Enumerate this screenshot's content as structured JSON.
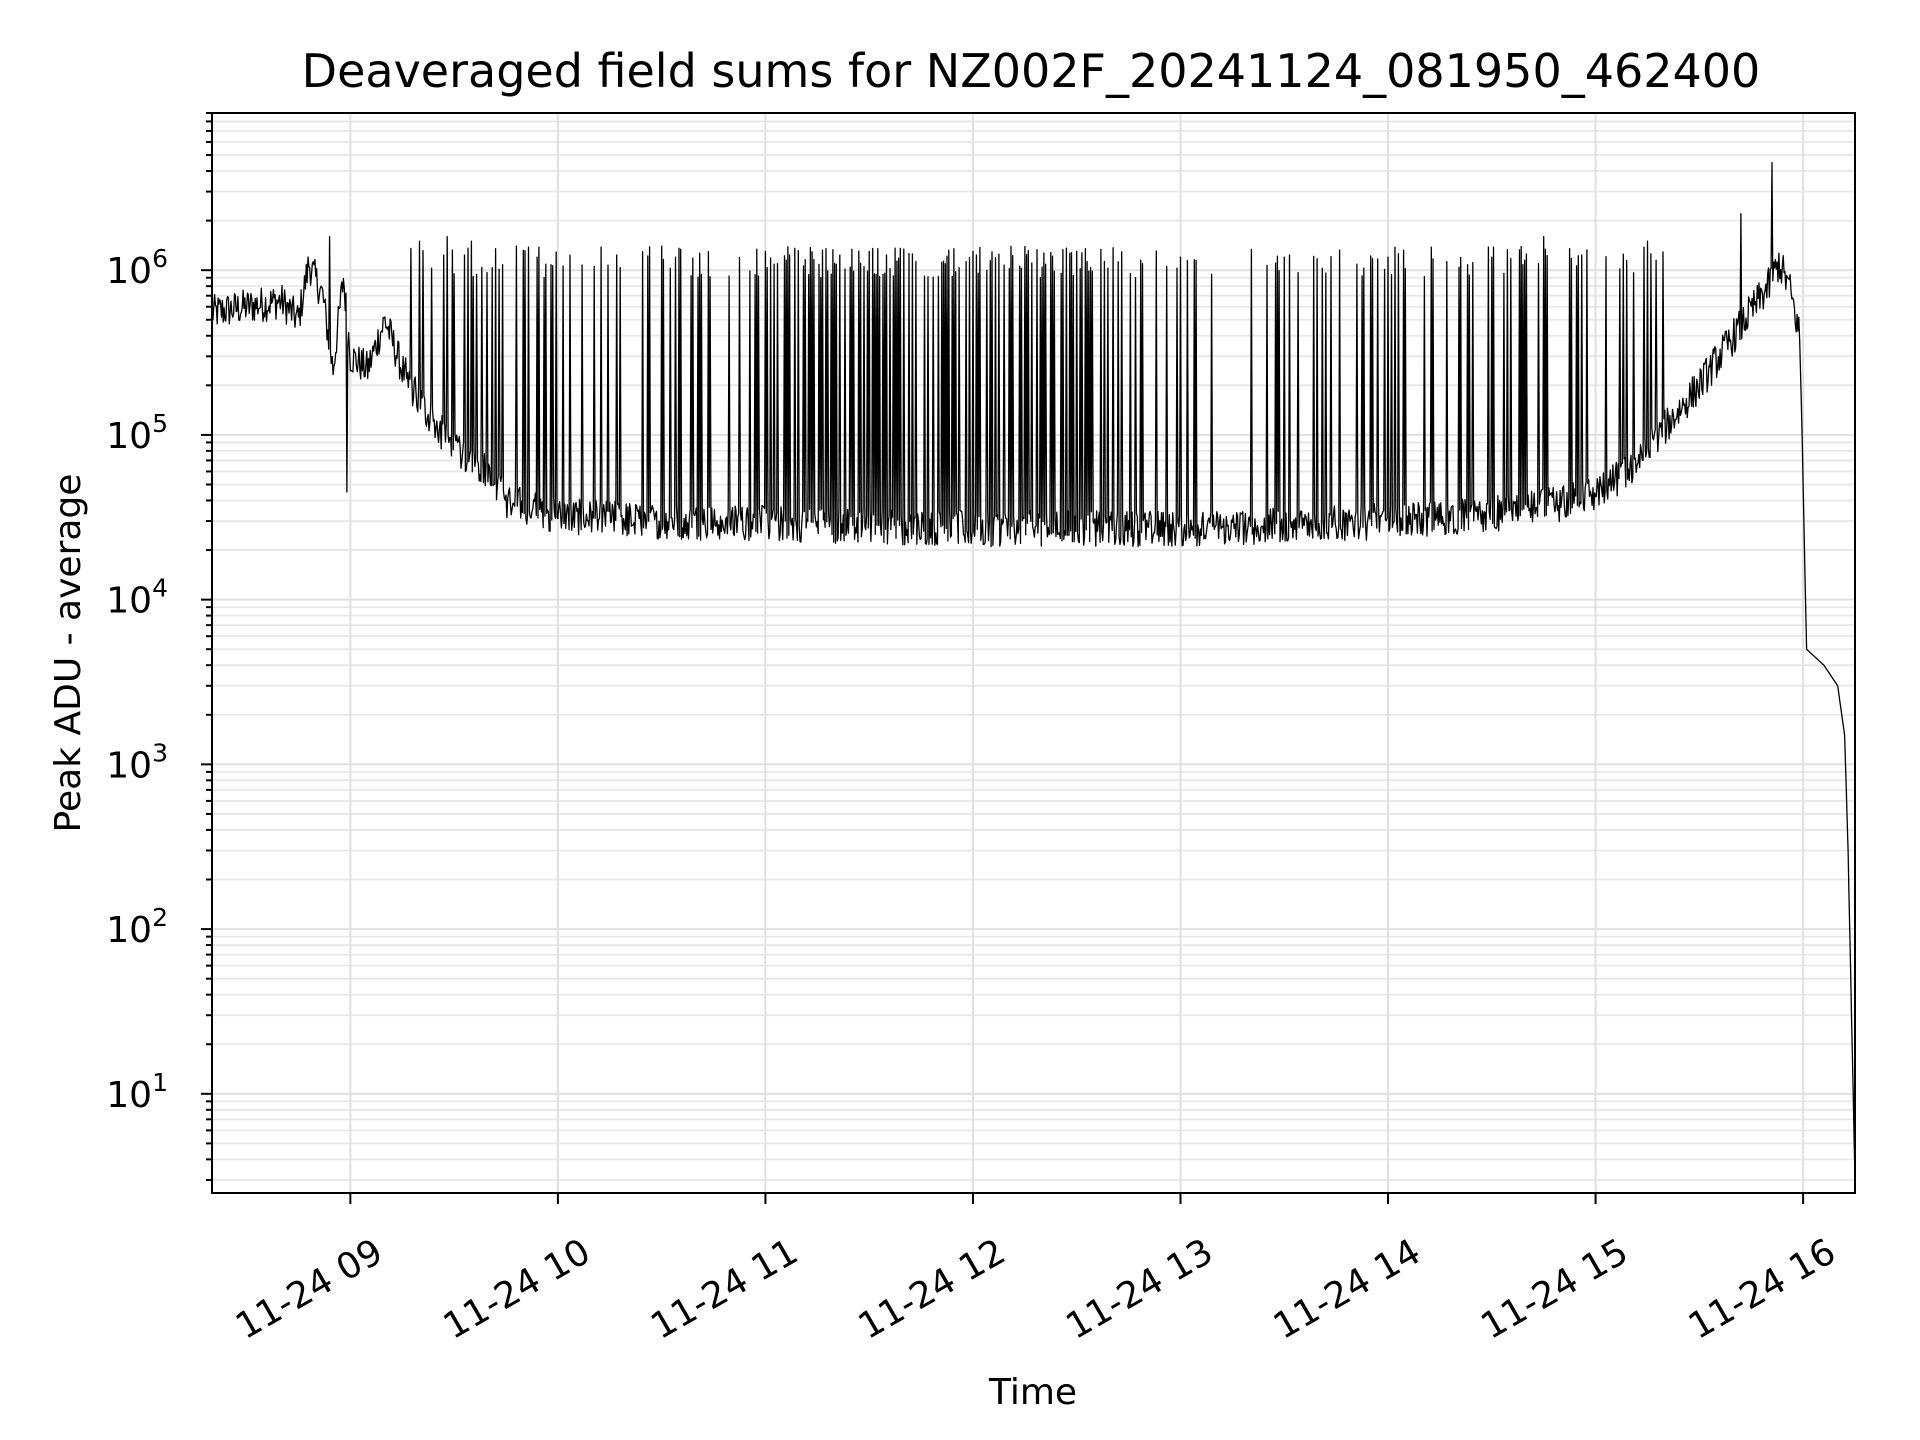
{
  "chart_data": {
    "type": "line",
    "title": "Deaveraged field sums for NZ002F_20241124_081950_462400",
    "xlabel": "Time",
    "ylabel": "Peak ADU - average",
    "yscale": "log",
    "xlim": [
      "2024-11-24 08:20",
      "2024-11-24 16:15"
    ],
    "ylim": [
      2.5,
      9000000
    ],
    "x_ticks": [
      "11-24 09",
      "11-24 10",
      "11-24 11",
      "11-24 12",
      "11-24 13",
      "11-24 14",
      "11-24 15",
      "11-24 16"
    ],
    "y_ticks": [
      {
        "base": "10",
        "exp": "1",
        "value": 10
      },
      {
        "base": "10",
        "exp": "2",
        "value": 100
      },
      {
        "base": "10",
        "exp": "3",
        "value": 1000
      },
      {
        "base": "10",
        "exp": "4",
        "value": 10000
      },
      {
        "base": "10",
        "exp": "5",
        "value": 100000
      },
      {
        "base": "10",
        "exp": "6",
        "value": 1000000
      }
    ],
    "grid": true,
    "line_color": "#000000",
    "series": [
      {
        "points": [
          [
            "2024-11-24 08:20",
            550000
          ],
          [
            "2024-11-24 08:30",
            600000
          ],
          [
            "2024-11-24 08:40",
            650000
          ],
          [
            "2024-11-24 08:45",
            500000
          ],
          [
            "2024-11-24 08:48",
            1100000
          ],
          [
            "2024-11-24 08:52",
            700000
          ],
          [
            "2024-11-24 08:55",
            250000
          ],
          [
            "2024-11-24 08:58",
            900000
          ],
          [
            "2024-11-24 09:00",
            300000
          ],
          [
            "2024-11-24 09:05",
            250000
          ],
          [
            "2024-11-24 09:10",
            500000
          ],
          [
            "2024-11-24 09:15",
            250000
          ],
          [
            "2024-11-24 09:20",
            160000
          ],
          [
            "2024-11-24 09:30",
            80000
          ],
          [
            "2024-11-24 09:40",
            60000
          ],
          [
            "2024-11-24 09:45",
            40000
          ],
          [
            "2024-11-24 09:55",
            35000
          ],
          [
            "2024-11-24 10:00",
            32000
          ],
          [
            "2024-11-24 10:30",
            30000
          ],
          [
            "2024-11-24 11:00",
            29000
          ],
          [
            "2024-11-24 11:30",
            28000
          ],
          [
            "2024-11-24 12:00",
            27000
          ],
          [
            "2024-11-24 12:30",
            27000
          ],
          [
            "2024-11-24 13:00",
            27000
          ],
          [
            "2024-11-24 13:30",
            28000
          ],
          [
            "2024-11-24 14:00",
            30000
          ],
          [
            "2024-11-24 14:30",
            33000
          ],
          [
            "2024-11-24 14:50",
            38000
          ],
          [
            "2024-11-24 15:00",
            45000
          ],
          [
            "2024-11-24 15:10",
            60000
          ],
          [
            "2024-11-24 15:20",
            110000
          ],
          [
            "2024-11-24 15:30",
            200000
          ],
          [
            "2024-11-24 15:40",
            400000
          ],
          [
            "2024-11-24 15:50",
            800000
          ],
          [
            "2024-11-24 15:53",
            1100000
          ],
          [
            "2024-11-24 15:56",
            800000
          ],
          [
            "2024-11-24 15:59",
            400000
          ],
          [
            "2024-11-24 16:00",
            50000
          ],
          [
            "2024-11-24 16:01",
            5000
          ],
          [
            "2024-11-24 16:06",
            4000
          ],
          [
            "2024-11-24 16:10",
            3000
          ],
          [
            "2024-11-24 16:12",
            1500
          ],
          [
            "2024-11-24 16:13",
            300
          ],
          [
            "2024-11-24 16:14",
            30
          ],
          [
            "2024-11-24 16:15",
            3
          ]
        ],
        "spikes": [
          [
            "2024-11-24 08:54",
            1600000
          ],
          [
            "2024-11-24 08:59",
            45000
          ],
          [
            "2024-11-24 09:20",
            1500000
          ],
          [
            "2024-11-24 09:28",
            1600000
          ],
          [
            "2024-11-24 09:35",
            1500000
          ],
          [
            "2024-11-24 09:48",
            1400000
          ],
          [
            "2024-11-24 10:30",
            1400000
          ],
          [
            "2024-11-24 11:00",
            1300000
          ],
          [
            "2024-11-24 11:30",
            1300000
          ],
          [
            "2024-11-24 12:00",
            1300000
          ],
          [
            "2024-11-24 12:30",
            1300000
          ],
          [
            "2024-11-24 13:00",
            1200000
          ],
          [
            "2024-11-24 13:30",
            1200000
          ],
          [
            "2024-11-24 14:00",
            1200000
          ],
          [
            "2024-11-24 14:30",
            1200000
          ],
          [
            "2024-11-24 14:45",
            1600000
          ],
          [
            "2024-11-24 15:15",
            1500000
          ],
          [
            "2024-11-24 15:42",
            2200000
          ],
          [
            "2024-11-24 15:51",
            4500000
          ]
        ]
      }
    ]
  }
}
